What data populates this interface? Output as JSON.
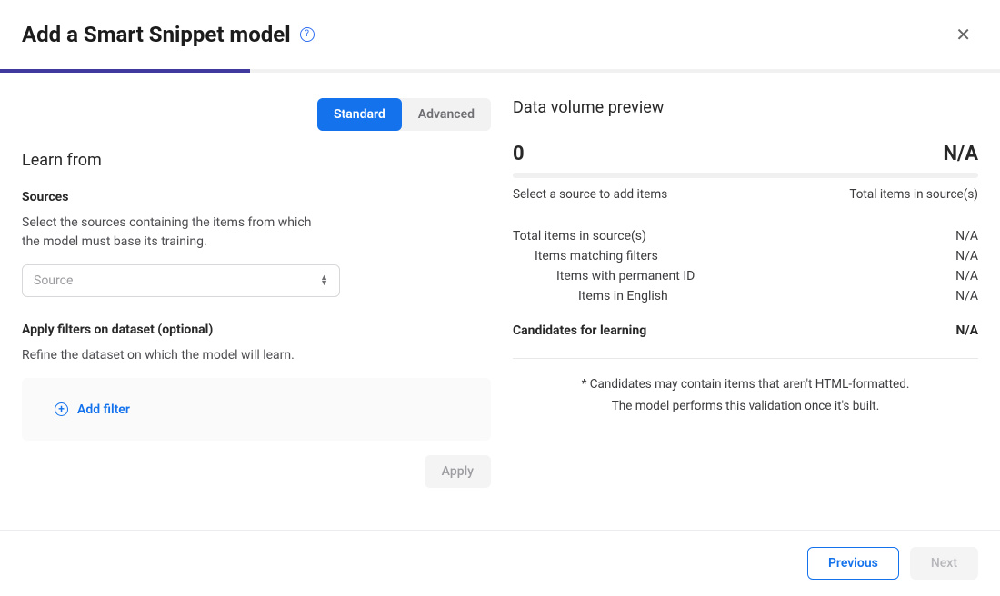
{
  "header": {
    "title": "Add a Smart Snippet model",
    "close_glyph": "✕"
  },
  "progress": {
    "percent": 25,
    "fill_color": "#403a9e",
    "track_color": "#f1f1f2"
  },
  "tabs": {
    "standard": "Standard",
    "advanced": "Advanced",
    "active": "standard",
    "active_bg": "#1372ec",
    "inactive_bg": "#f2f2f3"
  },
  "learn": {
    "heading": "Learn from",
    "sources_label": "Sources",
    "sources_help": "Select the sources containing the items from which the model must base its training.",
    "source_placeholder": "Source",
    "filters_label": "Apply filters on dataset (optional)",
    "filters_help": "Refine the dataset on which the model will learn.",
    "add_filter_label": "Add filter",
    "apply_label": "Apply"
  },
  "preview": {
    "heading": "Data volume preview",
    "count": "0",
    "count_na": "N/A",
    "sub_left": "Select a source to add items",
    "sub_right": "Total items in source(s)",
    "stats": [
      {
        "label": "Total items in source(s)",
        "value": "N/A",
        "indent": 0
      },
      {
        "label": "Items matching filters",
        "value": "N/A",
        "indent": 1
      },
      {
        "label": "Items with permanent ID",
        "value": "N/A",
        "indent": 2
      },
      {
        "label": "Items in English",
        "value": "N/A",
        "indent": 3
      }
    ],
    "candidates_label": "Candidates for learning",
    "candidates_value": "N/A",
    "note1": "* Candidates may contain items that aren't HTML-formatted.",
    "note2": "The model performs this validation once it's built."
  },
  "footer": {
    "previous": "Previous",
    "next": "Next"
  },
  "colors": {
    "accent": "#1372ec",
    "text": "#282829",
    "muted": "#9d9da1",
    "border": "#d8d8da"
  }
}
